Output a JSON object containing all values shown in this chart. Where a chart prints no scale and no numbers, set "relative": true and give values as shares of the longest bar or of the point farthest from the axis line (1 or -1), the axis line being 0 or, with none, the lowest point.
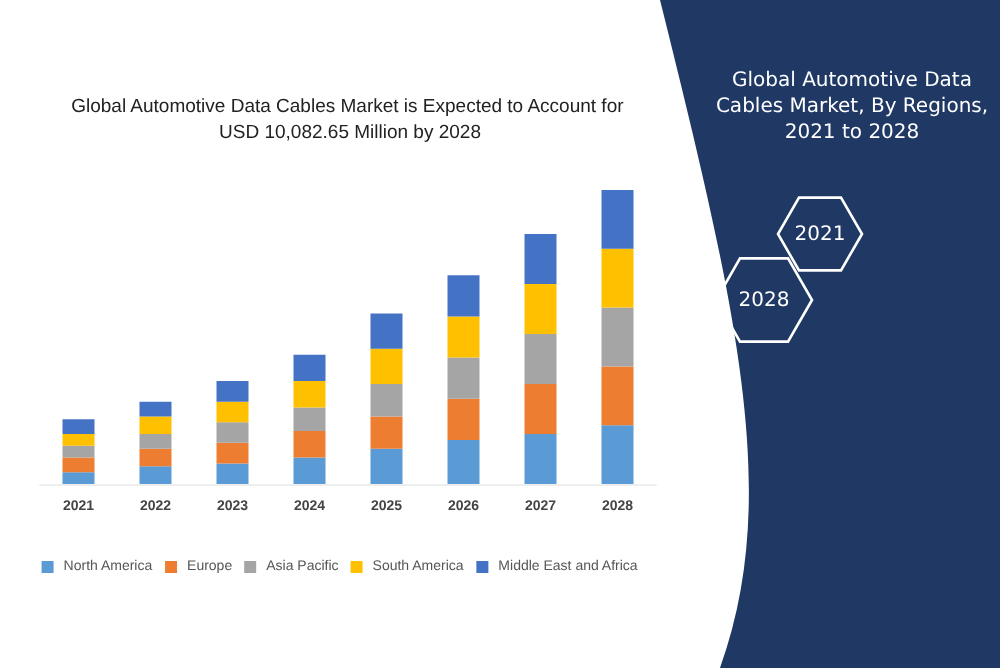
{
  "chart_data": {
    "type": "bar",
    "stacked": true,
    "relative": true,
    "title": "Global Automotive Data Cables Market is Expected to Account for USD 10,082.65 Million by 2028",
    "categories": [
      "2021",
      "2022",
      "2023",
      "2024",
      "2025",
      "2026",
      "2027",
      "2028"
    ],
    "series": [
      {
        "name": "North America",
        "color": "#5b9bd5",
        "values": [
          0.04,
          0.06,
          0.07,
          0.09,
          0.12,
          0.15,
          0.17,
          0.2
        ]
      },
      {
        "name": "Europe",
        "color": "#ed7d31",
        "values": [
          0.05,
          0.06,
          0.07,
          0.09,
          0.11,
          0.14,
          0.17,
          0.2
        ]
      },
      {
        "name": "Asia Pacific",
        "color": "#a5a5a5",
        "values": [
          0.04,
          0.05,
          0.07,
          0.08,
          0.11,
          0.14,
          0.17,
          0.2
        ]
      },
      {
        "name": "South America",
        "color": "#ffc000",
        "values": [
          0.04,
          0.06,
          0.07,
          0.09,
          0.12,
          0.14,
          0.17,
          0.2
        ]
      },
      {
        "name": "Middle East and Africa",
        "color": "#4472c4",
        "values": [
          0.05,
          0.05,
          0.07,
          0.09,
          0.12,
          0.14,
          0.17,
          0.2
        ]
      }
    ],
    "legend": "bottom",
    "annotations": [
      "Global Automotive Data Cables Market, By Regions, 2021 to 2028",
      "2021",
      "2028"
    ]
  }
}
